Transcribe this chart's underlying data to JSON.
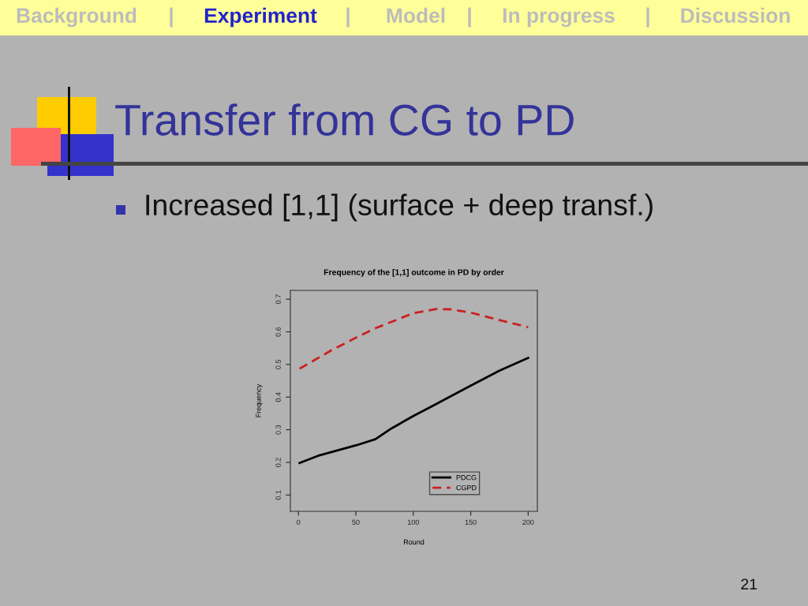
{
  "chart_data": {
    "type": "line",
    "title": "Frequency of the [1,1] outcome in PD by order",
    "xlabel": "Round",
    "ylabel": "Frequency",
    "series": [
      {
        "name": "PDCG",
        "color": "#000000",
        "line_style": "solid",
        "x": [
          1,
          17,
          50,
          67,
          81,
          100,
          120,
          150,
          175,
          200
        ],
        "values": [
          0.198,
          0.22,
          0.252,
          0.271,
          0.304,
          0.342,
          0.379,
          0.435,
          0.481,
          0.52
        ]
      },
      {
        "name": "CGPD",
        "color": "#cc2020",
        "line_style": "dashed",
        "x": [
          1,
          28,
          50,
          67,
          100,
          120,
          132,
          150,
          175,
          200
        ],
        "values": [
          0.487,
          0.542,
          0.582,
          0.611,
          0.657,
          0.67,
          0.669,
          0.659,
          0.636,
          0.614
        ]
      }
    ],
    "xlim": [
      -7,
      208
    ],
    "ylim": [
      0.05,
      0.727
    ],
    "xticks": [
      0,
      50,
      100,
      150,
      200
    ],
    "yticks": [
      0.1,
      0.2,
      0.3,
      0.4,
      0.5,
      0.6,
      0.7
    ],
    "legend": "bottom right",
    "marker": "none",
    "annotations": [
      "Background",
      "|",
      "Experiment",
      "|",
      "Model",
      "|",
      "In progress",
      "|",
      "Discussion",
      "Transfer from CG to PD",
      "Increased [1,1] (surface + deep transf.)",
      "21"
    ]
  }
}
